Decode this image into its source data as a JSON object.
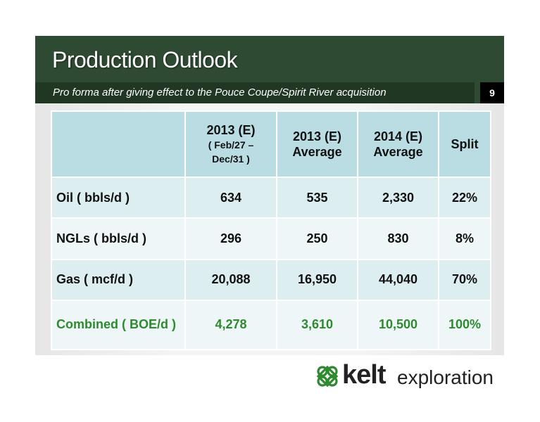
{
  "header": {
    "title": "Production Outlook",
    "subtitle": "Pro forma after giving effect to the Pouce Coupe/Spirit River acquisition",
    "page_number": "9"
  },
  "table": {
    "columns": [
      {
        "line1": "2013 (E)",
        "line2": "( Feb/27 –",
        "line3": "Dec/31 )"
      },
      {
        "line1": "2013 (E)",
        "line2": "Average"
      },
      {
        "line1": "2014 (E)",
        "line2": "Average"
      },
      {
        "line1": "Split"
      }
    ],
    "rows": [
      {
        "label": "Oil ( bbls/d )",
        "values": [
          "634",
          "535",
          "2,330",
          "22%"
        ]
      },
      {
        "label": "NGLs ( bbls/d )",
        "values": [
          "296",
          "250",
          "830",
          "8%"
        ]
      },
      {
        "label": "Gas ( mcf/d )",
        "values": [
          "20,088",
          "16,950",
          "44,040",
          "70%"
        ]
      },
      {
        "label": "Combined ( BOE/d )",
        "values": [
          "4,278",
          "3,610",
          "10,500",
          "100%"
        ]
      }
    ]
  },
  "logo": {
    "name_bold": "kelt",
    "name_light": "exploration",
    "icon": "celtic-knot-icon",
    "color": "#2e8a2e"
  },
  "colors": {
    "header_bg": "#2e4a32",
    "subtitle_bg": "#1f3723",
    "table_header_bg": "#b9dde3",
    "combined_text": "#2e8a2e"
  }
}
